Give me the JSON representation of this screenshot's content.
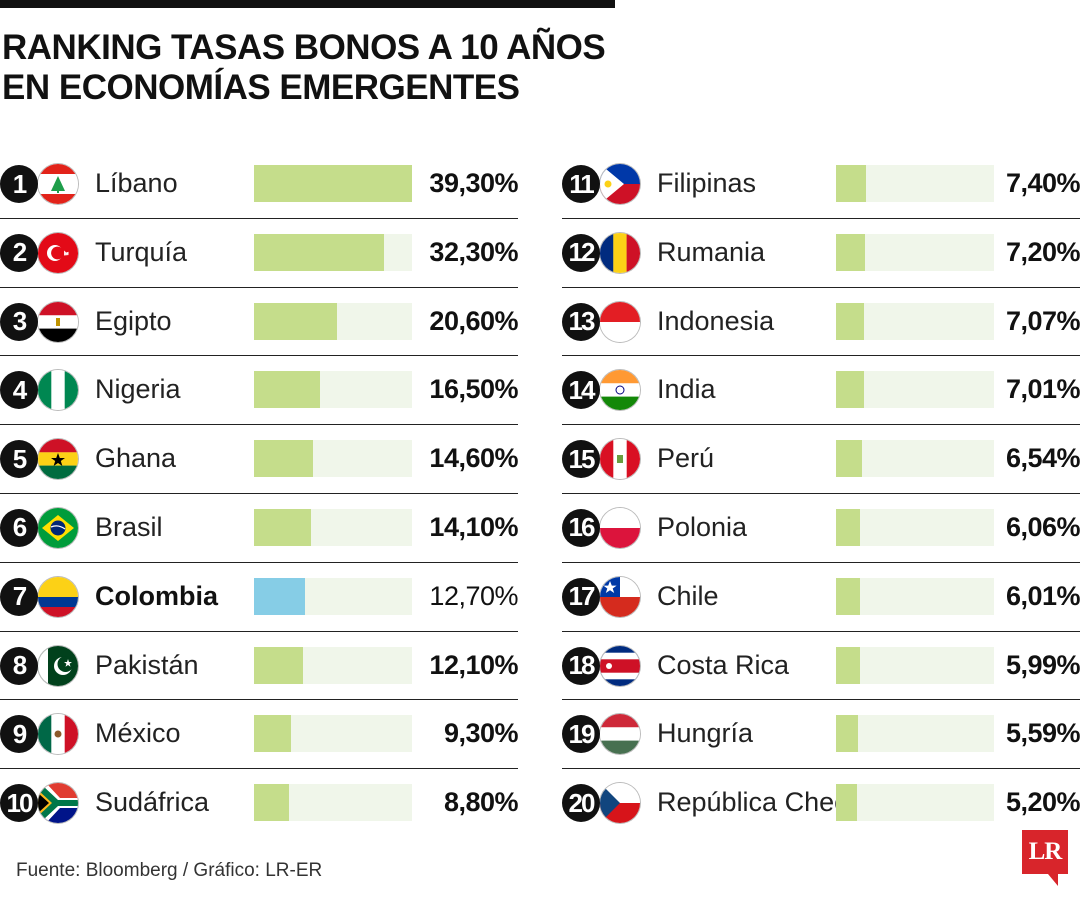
{
  "header": {
    "title_line1": "RANKING TASAS BONOS A 10 AÑOS",
    "title_line2": "EN ECONOMÍAS EMERGENTES"
  },
  "footer": {
    "source": "Fuente: Bloomberg / Gráfico: LR-ER",
    "logo": "LR"
  },
  "colors": {
    "bar": "#c5dd8b",
    "bar_highlight": "#86cde6",
    "track": "#f0f6ea"
  },
  "chart_data": {
    "type": "bar",
    "title": "RANKING TASAS BONOS A 10 AÑOS EN ECONOMÍAS EMERGENTES",
    "xlim": [
      0,
      39.3
    ],
    "highlight": "Colombia",
    "rows": [
      {
        "rank": "1",
        "country": "Líbano",
        "value": 39.3,
        "label": "39,30%",
        "flag": "lebanon-flag-icon"
      },
      {
        "rank": "2",
        "country": "Turquía",
        "value": 32.3,
        "label": "32,30%",
        "flag": "turkey-flag-icon"
      },
      {
        "rank": "3",
        "country": "Egipto",
        "value": 20.6,
        "label": "20,60%",
        "flag": "egypt-flag-icon"
      },
      {
        "rank": "4",
        "country": "Nigeria",
        "value": 16.5,
        "label": "16,50%",
        "flag": "nigeria-flag-icon"
      },
      {
        "rank": "5",
        "country": "Ghana",
        "value": 14.6,
        "label": "14,60%",
        "flag": "ghana-flag-icon"
      },
      {
        "rank": "6",
        "country": "Brasil",
        "value": 14.1,
        "label": "14,10%",
        "flag": "brazil-flag-icon"
      },
      {
        "rank": "7",
        "country": "Colombia",
        "value": 12.7,
        "label": "12,70%",
        "flag": "colombia-flag-icon"
      },
      {
        "rank": "8",
        "country": "Pakistán",
        "value": 12.1,
        "label": "12,10%",
        "flag": "pakistan-flag-icon"
      },
      {
        "rank": "9",
        "country": "México",
        "value": 9.3,
        "label": "9,30%",
        "flag": "mexico-flag-icon"
      },
      {
        "rank": "10",
        "country": "Sudáfrica",
        "value": 8.8,
        "label": "8,80%",
        "flag": "south-africa-flag-icon"
      },
      {
        "rank": "11",
        "country": "Filipinas",
        "value": 7.4,
        "label": "7,40%",
        "flag": "philippines-flag-icon"
      },
      {
        "rank": "12",
        "country": "Rumania",
        "value": 7.2,
        "label": "7,20%",
        "flag": "romania-flag-icon"
      },
      {
        "rank": "13",
        "country": "Indonesia",
        "value": 7.07,
        "label": "7,07%",
        "flag": "indonesia-flag-icon"
      },
      {
        "rank": "14",
        "country": "India",
        "value": 7.01,
        "label": "7,01%",
        "flag": "india-flag-icon"
      },
      {
        "rank": "15",
        "country": "Perú",
        "value": 6.54,
        "label": "6,54%",
        "flag": "peru-flag-icon"
      },
      {
        "rank": "16",
        "country": "Polonia",
        "value": 6.06,
        "label": "6,06%",
        "flag": "poland-flag-icon"
      },
      {
        "rank": "17",
        "country": "Chile",
        "value": 6.01,
        "label": "6,01%",
        "flag": "chile-flag-icon"
      },
      {
        "rank": "18",
        "country": "Costa Rica",
        "value": 5.99,
        "label": "5,99%",
        "flag": "costa-rica-flag-icon"
      },
      {
        "rank": "19",
        "country": "Hungría",
        "value": 5.59,
        "label": "5,59%",
        "flag": "hungary-flag-icon"
      },
      {
        "rank": "20",
        "country": "República Checa",
        "value": 5.2,
        "label": "5,20%",
        "flag": "czech-flag-icon"
      }
    ]
  }
}
